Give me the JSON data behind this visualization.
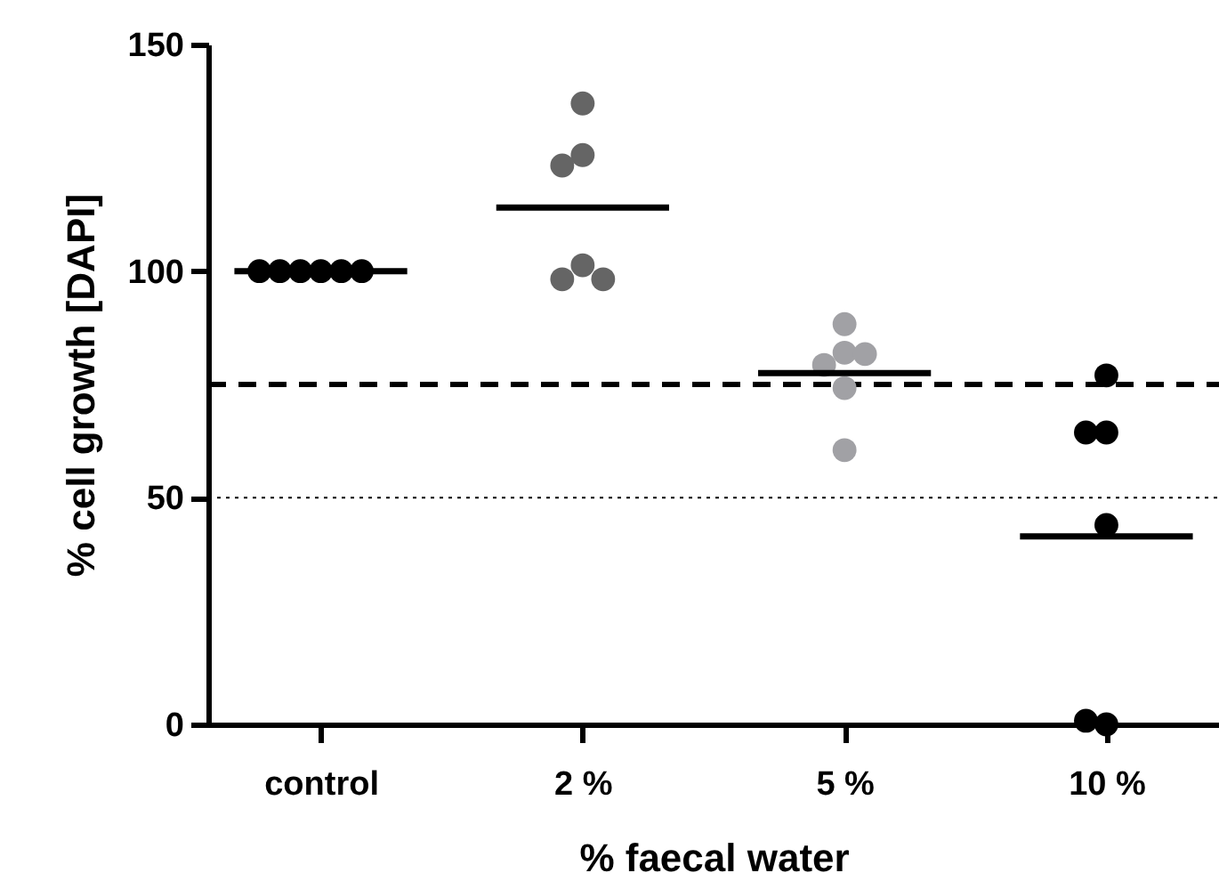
{
  "chart_data": {
    "type": "scatter",
    "xlabel": "% faecal water",
    "ylabel": "% cell growth [DAPI]",
    "categories": [
      "control",
      "2 %",
      "5 %",
      "10 %"
    ],
    "series": [
      {
        "color": "#000000",
        "x": [
          "control",
          "control",
          "control",
          "control",
          "control",
          "control"
        ],
        "values": [
          100,
          100,
          100,
          100,
          100,
          100
        ]
      },
      {
        "color": "#656565",
        "x": [
          "2 %",
          "2 %",
          "2 %",
          "2 %",
          "2 %",
          "2 %"
        ],
        "values": [
          137,
          125.6,
          123.3,
          101.3,
          98.2,
          98.2
        ]
      },
      {
        "color": "#a1a1a5",
        "x": [
          "5 %",
          "5 %",
          "5 %",
          "5 %",
          "5 %",
          "5 %"
        ],
        "values": [
          88.3,
          82,
          79.3,
          81.7,
          74.2,
          60.5
        ]
      },
      {
        "color": "#000000",
        "x": [
          "10 %",
          "10 %",
          "10 %",
          "10 %",
          "10 %",
          "10 %"
        ],
        "values": [
          77,
          64.4,
          64.4,
          44,
          0,
          0.8
        ]
      },
      {
        "type": "box",
        "color": "#000000",
        "boxes": [
          {
            "low": 100,
            "q1": 100,
            "median": 100,
            "q3": 100,
            "high": 100
          },
          {
            "low": 114,
            "q1": 114,
            "median": 114,
            "q3": 114,
            "high": 114
          },
          {
            "low": 77.5,
            "q1": 77.5,
            "median": 77.5,
            "q3": 77.5,
            "high": 77.5
          },
          {
            "low": 41.5,
            "q1": 41.5,
            "median": 41.5,
            "q3": 41.5,
            "high": 41.5
          }
        ]
      }
    ],
    "ref_lines": [
      {
        "axis": "y",
        "value": 75,
        "color": "#000000",
        "line_style": "dashed"
      },
      {
        "axis": "y",
        "value": 50,
        "color": "#000000",
        "line_style": "dotted"
      }
    ],
    "ylim": [
      0,
      150
    ],
    "yticks": [
      0,
      50,
      100,
      150
    ],
    "marker": "circle"
  }
}
